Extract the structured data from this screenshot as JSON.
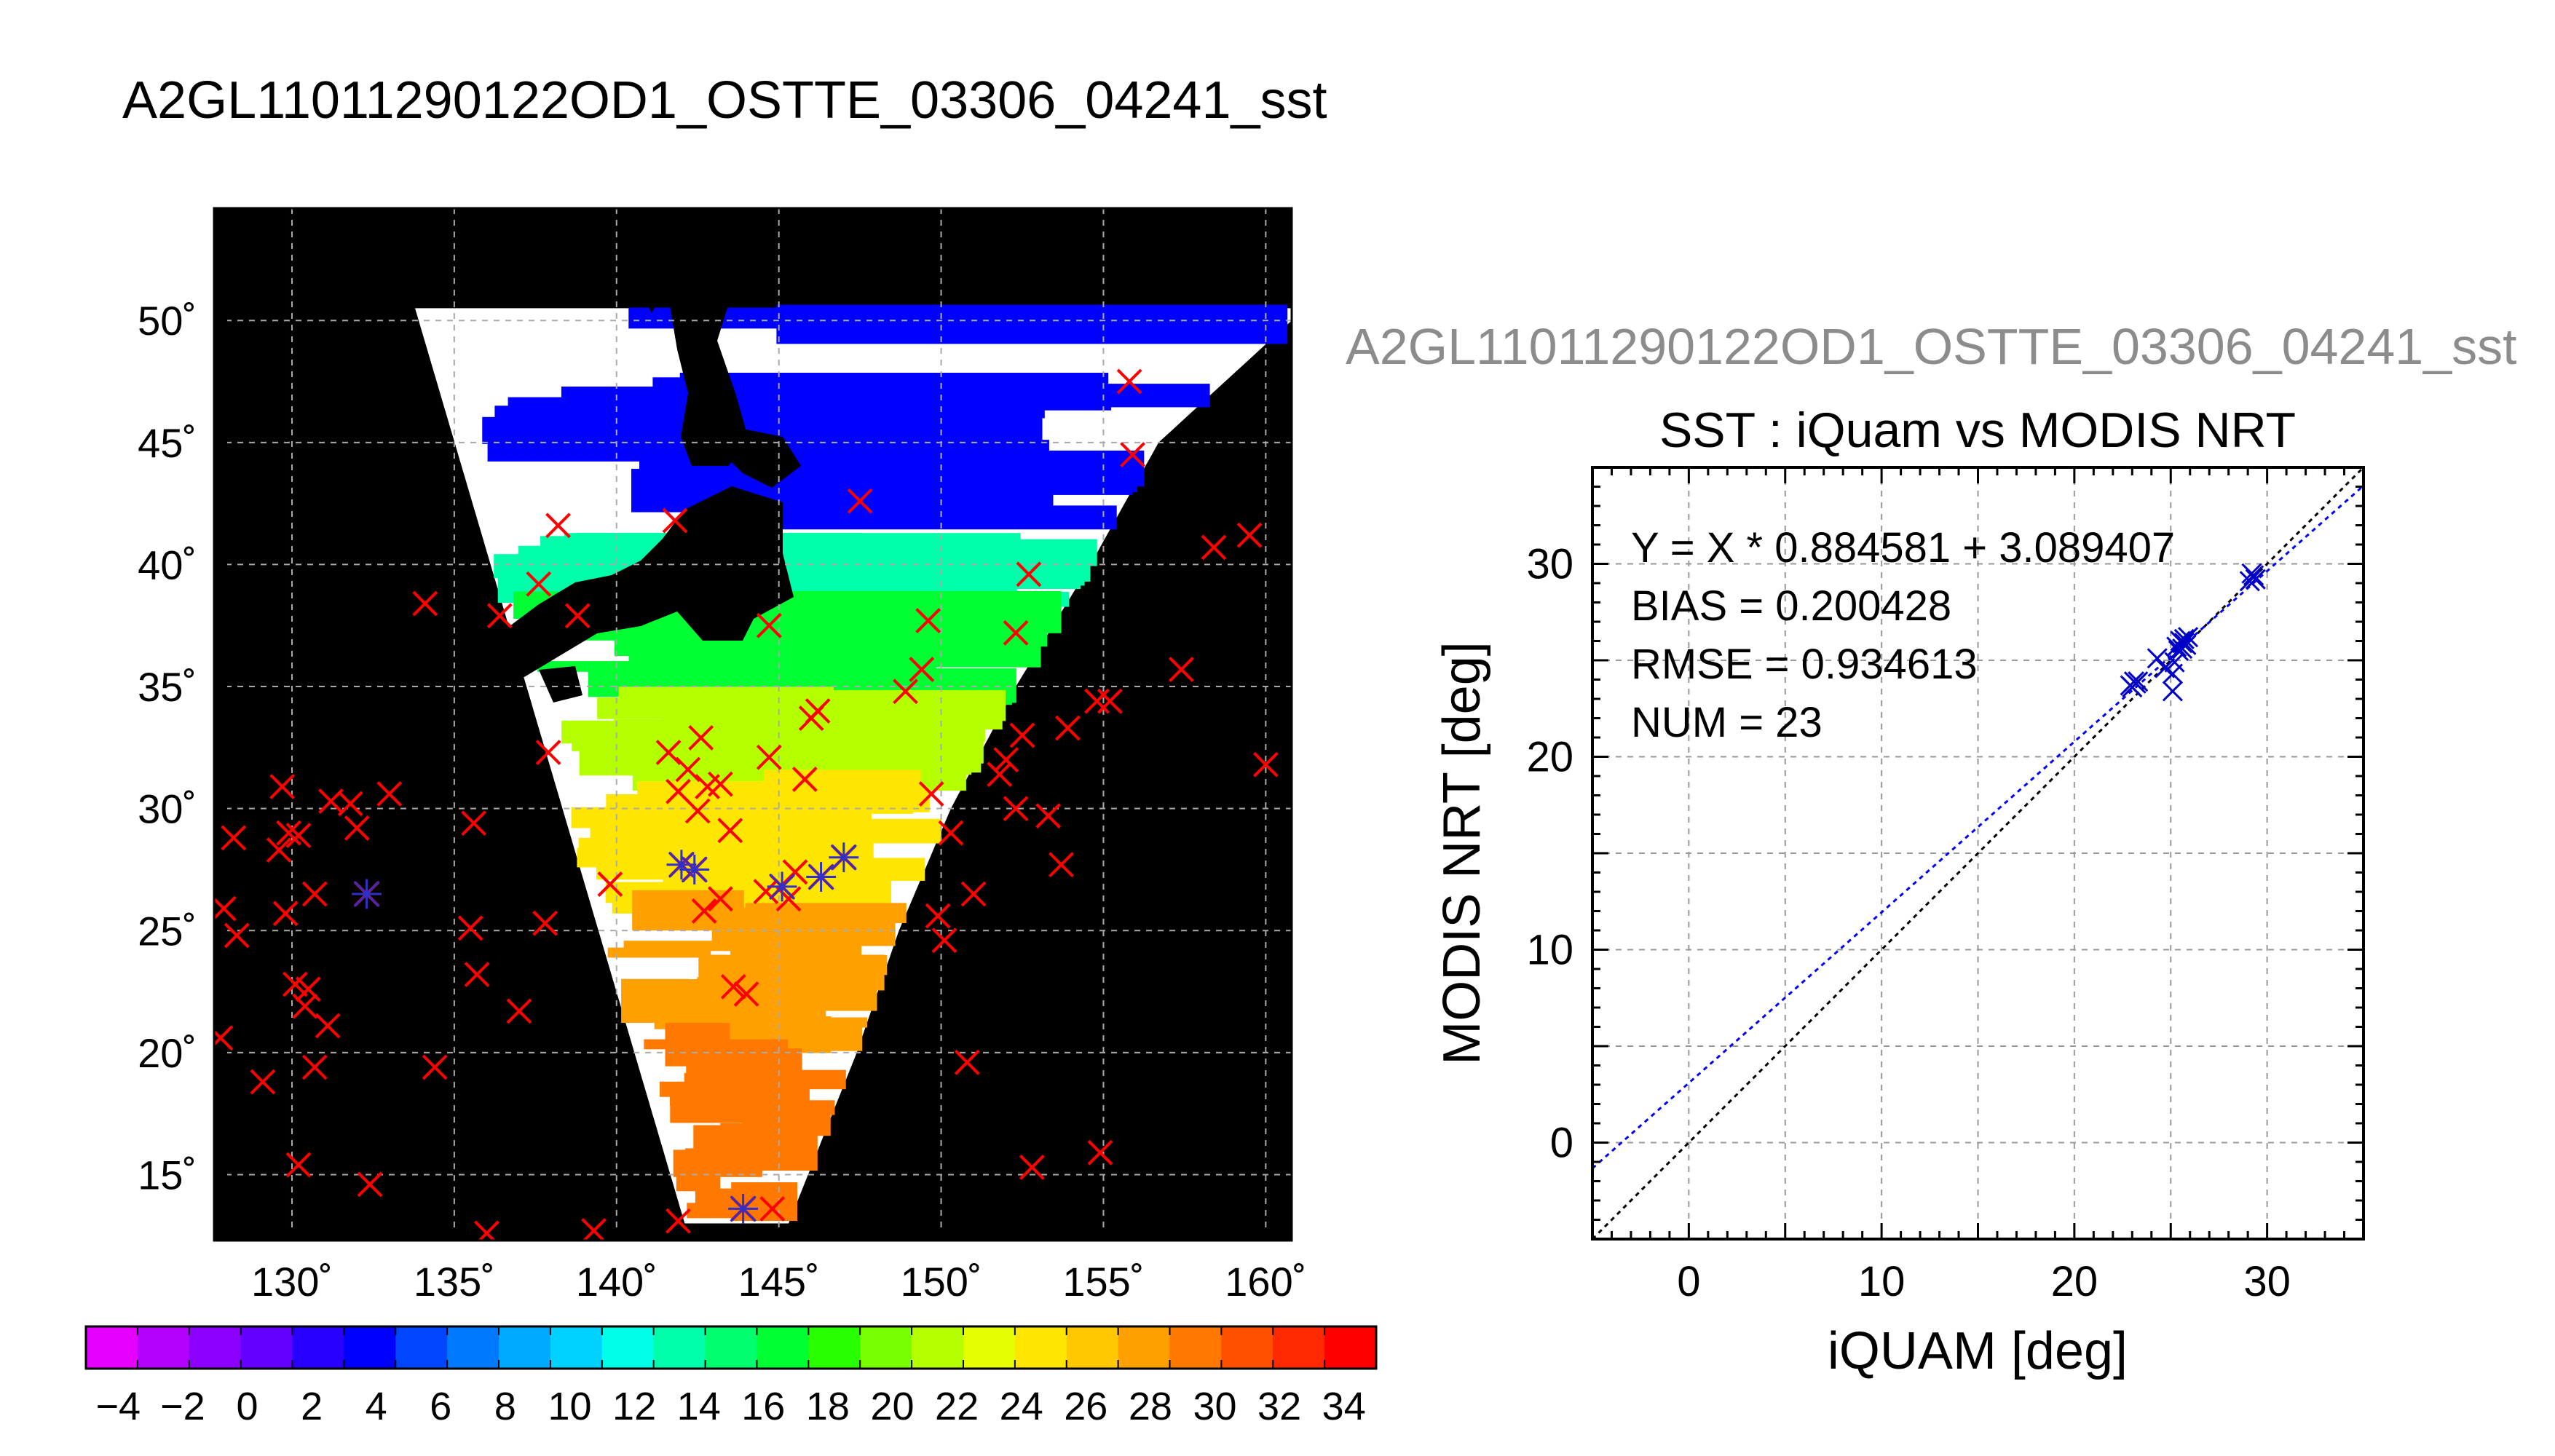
{
  "figure_title": "A2GL11011290122OD1_OSTTE_03306_04241_sst",
  "chart_data": [
    {
      "type": "map",
      "title": "A2GL11011290122OD1_OSTTE_03306_04241_sst",
      "x_ticks": [
        "130˚",
        "135˚",
        "140˚",
        "145˚",
        "150˚",
        "155˚",
        "160˚"
      ],
      "x_tick_values": [
        130,
        135,
        140,
        145,
        150,
        155,
        160
      ],
      "y_ticks": [
        "15˚",
        "20˚",
        "25˚",
        "30˚",
        "35˚",
        "40˚",
        "45˚",
        "50˚"
      ],
      "y_tick_values": [
        15,
        20,
        25,
        30,
        35,
        40,
        45,
        50
      ],
      "xlim": [
        127.6,
        160.8
      ],
      "ylim": [
        12.3,
        54.6
      ],
      "grid": true,
      "colors": {
        "land": "#000000",
        "cloud": "#ffffff",
        "marker_red": "#ff0000",
        "marker_match": "#3030c8"
      },
      "sst_bands": [
        {
          "lat_from": 41.5,
          "lat_to": 50.5,
          "sst": 4
        },
        {
          "lat_from": 38.5,
          "lat_to": 41.5,
          "sst": 14
        },
        {
          "lat_from": 34.5,
          "lat_to": 38.5,
          "sst": 17
        },
        {
          "lat_from": 31.0,
          "lat_to": 34.5,
          "sst": 21
        },
        {
          "lat_from": 26.0,
          "lat_to": 31.0,
          "sst": 25
        },
        {
          "lat_from": 20.5,
          "lat_to": 26.0,
          "sst": 28
        },
        {
          "lat_from": 13.0,
          "lat_to": 20.5,
          "sst": 29
        }
      ],
      "points_red": [
        [
          128.2,
          28.8
        ],
        [
          127.9,
          25.9
        ],
        [
          128.3,
          24.8
        ],
        [
          127.8,
          20.6
        ],
        [
          129.7,
          30.9
        ],
        [
          129.9,
          29.0
        ],
        [
          129.6,
          28.3
        ],
        [
          130.2,
          28.9
        ],
        [
          129.8,
          25.7
        ],
        [
          130.1,
          22.8
        ],
        [
          130.5,
          22.6
        ],
        [
          130.4,
          21.9
        ],
        [
          131.1,
          21.1
        ],
        [
          130.7,
          19.4
        ],
        [
          129.1,
          18.8
        ],
        [
          130.2,
          15.4
        ],
        [
          131.2,
          30.3
        ],
        [
          131.8,
          30.2
        ],
        [
          132.0,
          29.2
        ],
        [
          133.0,
          30.6
        ],
        [
          130.7,
          26.5
        ],
        [
          132.4,
          14.6
        ],
        [
          134.1,
          38.4
        ],
        [
          134.4,
          19.4
        ],
        [
          135.6,
          29.4
        ],
        [
          135.5,
          25.1
        ],
        [
          135.7,
          23.2
        ],
        [
          136.0,
          12.6
        ],
        [
          136.4,
          37.9
        ],
        [
          137.0,
          21.7
        ],
        [
          137.6,
          39.2
        ],
        [
          138.2,
          41.6
        ],
        [
          138.8,
          37.9
        ],
        [
          137.8,
          25.3
        ],
        [
          137.9,
          32.3
        ],
        [
          139.8,
          26.9
        ],
        [
          139.3,
          12.7
        ],
        [
          141.8,
          41.8
        ],
        [
          141.6,
          32.3
        ],
        [
          142.2,
          31.6
        ],
        [
          142.6,
          32.9
        ],
        [
          141.9,
          30.7
        ],
        [
          142.8,
          30.9
        ],
        [
          143.2,
          31.0
        ],
        [
          142.5,
          29.9
        ],
        [
          143.5,
          29.1
        ],
        [
          142.7,
          25.8
        ],
        [
          143.2,
          26.3
        ],
        [
          141.9,
          13.1
        ],
        [
          143.6,
          22.7
        ],
        [
          144.0,
          22.4
        ],
        [
          144.8,
          13.6
        ],
        [
          144.7,
          37.5
        ],
        [
          144.7,
          32.1
        ],
        [
          145.8,
          31.2
        ],
        [
          146.0,
          33.7
        ],
        [
          146.2,
          34.0
        ],
        [
          145.3,
          26.3
        ],
        [
          144.6,
          26.6
        ],
        [
          145.5,
          27.4
        ],
        [
          147.5,
          42.6
        ],
        [
          149.6,
          37.7
        ],
        [
          148.9,
          34.8
        ],
        [
          149.7,
          30.6
        ],
        [
          149.4,
          35.7
        ],
        [
          149.9,
          25.6
        ],
        [
          150.3,
          29.0
        ],
        [
          150.1,
          24.6
        ],
        [
          151.0,
          26.5
        ],
        [
          150.8,
          19.6
        ],
        [
          152.0,
          32.0
        ],
        [
          151.8,
          31.4
        ],
        [
          152.3,
          30.0
        ],
        [
          153.3,
          29.7
        ],
        [
          152.5,
          33.0
        ],
        [
          152.3,
          37.2
        ],
        [
          152.7,
          39.6
        ],
        [
          153.9,
          33.3
        ],
        [
          153.7,
          27.7
        ],
        [
          152.8,
          15.3
        ],
        [
          154.8,
          34.4
        ],
        [
          155.2,
          34.4
        ],
        [
          154.9,
          15.9
        ],
        [
          155.8,
          47.5
        ],
        [
          155.9,
          44.5
        ],
        [
          157.4,
          35.7
        ],
        [
          158.4,
          40.7
        ],
        [
          159.5,
          41.2
        ],
        [
          160.0,
          31.8
        ]
      ],
      "points_match": [
        [
          132.3,
          26.5
        ],
        [
          142.0,
          27.7
        ],
        [
          142.4,
          27.5
        ],
        [
          145.1,
          26.8
        ],
        [
          146.3,
          27.2
        ],
        [
          147.0,
          28.0
        ],
        [
          143.9,
          13.6
        ]
      ]
    },
    {
      "type": "scatter",
      "title": "SST : iQuam vs MODIS NRT",
      "secondary_title": "A2GL11011290122OD1_OSTTE_03306_04241_sst",
      "xlabel": "iQUAM [deg]",
      "ylabel": "MODIS NRT [deg]",
      "xlim": [
        -5,
        35
      ],
      "ylim": [
        -5,
        35
      ],
      "x_ticks": [
        "0",
        "10",
        "20",
        "30"
      ],
      "x_tick_values": [
        0,
        10,
        20,
        30
      ],
      "y_ticks": [
        "0",
        "10",
        "20",
        "30"
      ],
      "y_tick_values": [
        0,
        10,
        20,
        30
      ],
      "grid": true,
      "stats": {
        "equation": "Y = X * 0.884581 + 3.089407",
        "bias": "BIAS = 0.200428",
        "rmse": "RMSE = 0.934613",
        "num": "NUM = 23"
      },
      "fit": {
        "slope": 0.884581,
        "intercept": 3.089407,
        "color": "#0000ff"
      },
      "identity_line_color": "#000000",
      "marker_color": "#0000c8",
      "points": [
        [
          22.9,
          23.7
        ],
        [
          23.1,
          23.9
        ],
        [
          23.0,
          23.6
        ],
        [
          23.2,
          23.8
        ],
        [
          24.3,
          25.1
        ],
        [
          24.7,
          24.6
        ],
        [
          25.1,
          24.3
        ],
        [
          25.1,
          23.4
        ],
        [
          25.3,
          25.7
        ],
        [
          25.5,
          26.0
        ],
        [
          25.6,
          25.9
        ],
        [
          25.7,
          26.1
        ],
        [
          25.8,
          25.8
        ],
        [
          25.4,
          25.5
        ],
        [
          25.9,
          26.2
        ],
        [
          29.1,
          29.1
        ],
        [
          29.3,
          29.4
        ],
        [
          29.4,
          29.2
        ],
        [
          29.2,
          29.5
        ],
        [
          25.2,
          24.9
        ],
        [
          25.6,
          25.6
        ],
        [
          23.3,
          23.9
        ],
        [
          25.7,
          25.9
        ]
      ]
    },
    {
      "type": "colorbar",
      "vmin": -5,
      "vmax": 35,
      "step": 2,
      "tick_labels": [
        "−4",
        "−2",
        "0",
        "2",
        "4",
        "6",
        "8",
        "10",
        "12",
        "14",
        "16",
        "18",
        "20",
        "22",
        "24",
        "26",
        "28",
        "30",
        "32",
        "34"
      ],
      "tick_values": [
        -4,
        -2,
        0,
        2,
        4,
        6,
        8,
        10,
        12,
        14,
        16,
        18,
        20,
        22,
        24,
        26,
        28,
        30,
        32,
        34
      ],
      "colors": [
        "#e600ff",
        "#b400ff",
        "#8c00ff",
        "#6400ff",
        "#2800ff",
        "#0000ff",
        "#0046ff",
        "#0078ff",
        "#00aaff",
        "#00d2ff",
        "#00ffe6",
        "#00ffaa",
        "#00ff6e",
        "#00ff32",
        "#28ff00",
        "#78ff00",
        "#b4ff00",
        "#e6ff00",
        "#ffe600",
        "#ffc800",
        "#ffa000",
        "#ff7800",
        "#ff5000",
        "#ff2800",
        "#ff0000"
      ]
    }
  ]
}
